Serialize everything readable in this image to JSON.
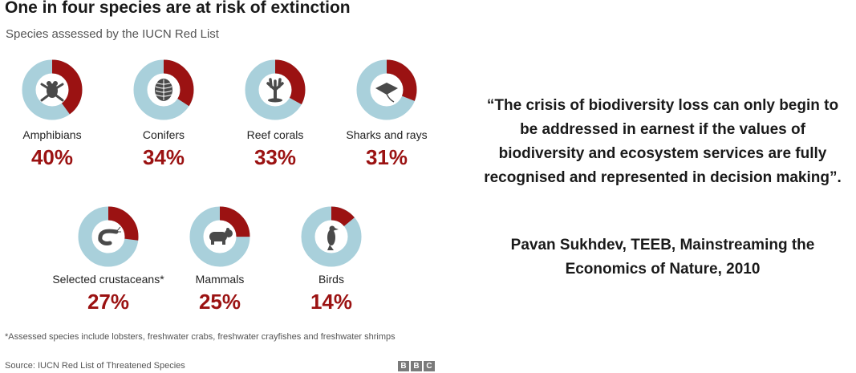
{
  "chart_data": {
    "type": "pie",
    "title": "One in four species are at risk of extinction",
    "subtitle": "Species assessed by the IUCN Red List",
    "categories": [
      "Amphibians",
      "Conifers",
      "Reef corals",
      "Sharks and rays",
      "Selected crustaceans*",
      "Mammals",
      "Birds"
    ],
    "values": [
      40,
      34,
      33,
      31,
      27,
      25,
      14
    ],
    "value_labels": [
      "40%",
      "34%",
      "33%",
      "31%",
      "27%",
      "25%",
      "14%"
    ],
    "icons": [
      "frog-icon",
      "pine-cone-icon",
      "coral-icon",
      "ray-icon",
      "shrimp-icon",
      "bear-icon",
      "bird-icon"
    ],
    "footnote": "*Assessed species include lobsters, freshwater crabs, freshwater crayfishes and freshwater shrimps",
    "source": "Source: IUCN Red List of Threatened Species",
    "colors": {
      "at_risk": "#9b1212",
      "not_at_risk": "#a9d0db",
      "icon": "#4a4a4a",
      "value_text": "#9b1212"
    }
  },
  "logo": {
    "letters": [
      "B",
      "B",
      "C"
    ]
  },
  "quote": {
    "text": "“The crisis of biodiversity loss can only begin to be addressed in earnest if the values of biodiversity and ecosystem services are fully recognised and represented in decision making”.",
    "attribution": "Pavan Sukhdev, TEEB, Mainstreaming the Economics of Nature, 2010"
  }
}
